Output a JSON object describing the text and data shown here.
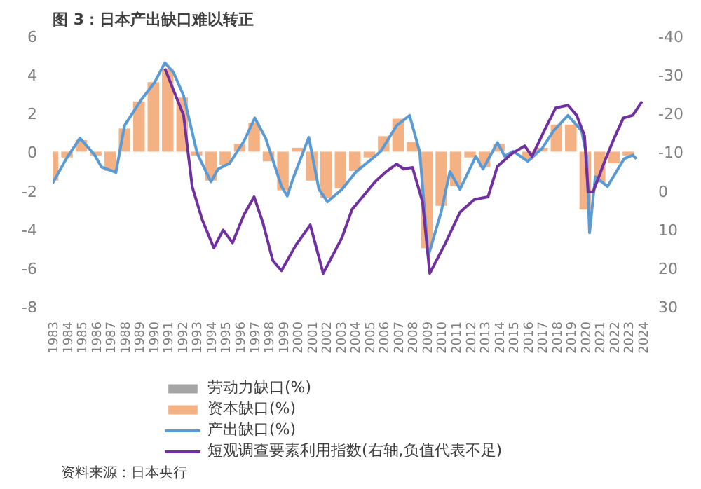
{
  "chart_data": {
    "type": "bar",
    "title": "图 3：日本产出缺口难以转正",
    "annotations": [
      "资料来源：日本央行"
    ],
    "xlim": [
      1983,
      2024
    ],
    "xticks": [
      1983,
      1984,
      1985,
      1986,
      1987,
      1988,
      1989,
      1990,
      1991,
      1992,
      1993,
      1994,
      1995,
      1996,
      1997,
      1998,
      1999,
      2000,
      2001,
      2002,
      2003,
      2004,
      2005,
      2006,
      2007,
      2008,
      2009,
      2010,
      2011,
      2012,
      2013,
      2014,
      2015,
      2016,
      2017,
      2018,
      2019,
      2020,
      2021,
      2022,
      2023,
      2024
    ],
    "ylim": [
      -8,
      6
    ],
    "yticks": [
      -8,
      -6,
      -4,
      -2,
      0,
      2,
      4,
      6
    ],
    "y2lim": [
      30,
      -40
    ],
    "y2ticks": [
      30,
      20,
      10,
      0,
      -10,
      -20,
      -30,
      -40
    ],
    "legend": "bottom",
    "grid": false,
    "x": [
      1983,
      1984,
      1985,
      1986,
      1987,
      1988,
      1989,
      1990,
      1991,
      1992,
      1993,
      1994,
      1995,
      1996,
      1997,
      1998,
      1999,
      2000,
      2001,
      2002,
      2003,
      2004,
      2005,
      2006,
      2007,
      2008,
      2009,
      2010,
      2011,
      2012,
      2013,
      2014,
      2015,
      2016,
      2017,
      2018,
      2019,
      2020,
      2021,
      2022,
      2023
    ],
    "series": [
      {
        "name": "劳动力缺口(%)",
        "color": "#a5a5a5",
        "values": [
          null,
          null,
          null,
          null,
          null,
          null,
          null,
          null,
          null,
          null,
          null,
          null,
          null,
          null,
          null,
          null,
          null,
          null,
          null,
          null,
          null,
          null,
          null,
          null,
          null,
          null,
          null,
          null,
          null,
          null,
          null,
          null,
          null,
          null,
          null,
          null,
          null,
          null,
          null,
          null,
          null
        ]
      },
      {
        "name": "资本缺口(%)",
        "color": "#f4b183",
        "values": [
          -1.5,
          -0.3,
          0.6,
          -0.2,
          -1.0,
          1.2,
          2.6,
          3.6,
          4.3,
          2.8,
          -0.2,
          -1.5,
          -0.7,
          0.4,
          1.5,
          -0.5,
          -2.0,
          0.2,
          -1.5,
          -2.4,
          -1.9,
          -1.0,
          -0.3,
          0.8,
          1.7,
          0.5,
          -5.0,
          -2.8,
          -1.8,
          -0.3,
          -0.8,
          0.4,
          0.0,
          -0.4,
          0.2,
          1.4,
          1.4,
          -3.0,
          -1.6,
          -0.6,
          -0.2
        ]
      },
      {
        "name": "产出缺口(%)",
        "type": "line",
        "color": "#5b9bd5",
        "x": [
          1983.0,
          1983.95,
          1984.9,
          1985.9,
          1986.4,
          1987.4,
          1988.0,
          1989.15,
          1990.1,
          1990.8,
          1991.4,
          1992.1,
          1993.05,
          1994.0,
          1994.5,
          1995.3,
          1996.3,
          1997.05,
          1997.8,
          1998.9,
          1999.3,
          1999.7,
          2000.8,
          2001.5,
          2002.1,
          2003.1,
          2004.1,
          2005.4,
          2005.8,
          2006.9,
          2007.8,
          2008.5,
          2009.1,
          2010.0,
          2010.6,
          2011.3,
          2012.4,
          2012.9,
          2013.9,
          2014.4,
          2015.0,
          2016.0,
          2017.0,
          2017.8,
          2018.8,
          2019.75,
          2020.1,
          2020.3,
          2020.7,
          2021.55,
          2022.7,
          2023.3,
          2023.55
        ],
        "values": [
          -1.64,
          -0.37,
          0.7,
          -0.15,
          -0.8,
          -1.08,
          1.35,
          2.67,
          3.6,
          4.6,
          4.1,
          2.9,
          -0.1,
          -1.56,
          -0.9,
          -0.6,
          0.55,
          1.74,
          0.7,
          -1.8,
          -2.3,
          -1.4,
          0.74,
          -1.95,
          -2.6,
          -1.95,
          -1.03,
          -0.24,
          0.02,
          1.35,
          1.87,
          0.0,
          -5.4,
          -3.1,
          -1.03,
          -1.95,
          -0.24,
          -0.9,
          0.47,
          -0.24,
          0.02,
          -0.5,
          0.16,
          1.08,
          1.87,
          1.08,
          -0.24,
          -4.2,
          -1.3,
          -1.8,
          -0.37,
          -0.18,
          -0.37
        ]
      },
      {
        "name": "短观调查要素利用指数(右轴,负值代表不足)",
        "type": "line",
        "color": "#7030a0",
        "axis": "y2",
        "x": [
          1990.8,
          1991.4,
          1992.1,
          1992.7,
          1993.4,
          1994.2,
          1994.85,
          1995.5,
          1996.3,
          1997.0,
          1997.6,
          1998.3,
          1998.9,
          1999.9,
          2000.9,
          2001.8,
          2003.1,
          2003.8,
          2005.4,
          2006.2,
          2006.9,
          2007.4,
          2008.0,
          2008.7,
          2009.2,
          2010.3,
          2011.3,
          2012.3,
          2013.25,
          2013.9,
          2014.9,
          2015.8,
          2016.3,
          2017.15,
          2017.95,
          2018.8,
          2019.4,
          2019.95,
          2020.2,
          2020.55,
          2021.35,
          2022.0,
          2022.65,
          2023.3,
          2023.95
        ],
        "values": [
          -31.5,
          -25.9,
          -19.4,
          -0.9,
          7.7,
          14.9,
          10.3,
          13.6,
          6.3,
          1.7,
          8.3,
          18.2,
          20.8,
          14.2,
          9,
          21.5,
          12.3,
          5,
          -2.2,
          -4.9,
          -6.8,
          -5.5,
          -5.9,
          3,
          21.5,
          13.6,
          5.7,
          2.4,
          1.7,
          -6.2,
          -9.5,
          -11.5,
          -8.8,
          -15.4,
          -21.3,
          -22,
          -19.4,
          -14.1,
          0.4,
          0.4,
          -7.5,
          -13.4,
          -18.7,
          -19.4,
          -23
        ]
      }
    ]
  }
}
